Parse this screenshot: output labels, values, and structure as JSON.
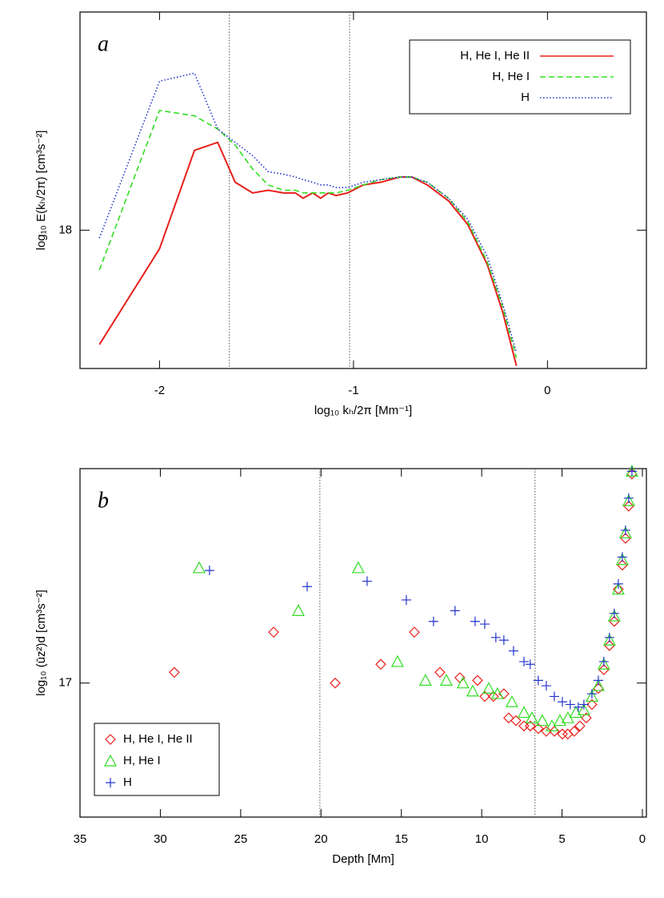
{
  "chart_data": [
    {
      "type": "line",
      "annotation": "a",
      "xlabel": "log₁₀ kₕ/2π [Mm⁻¹]",
      "ylabel": "log₁₀ E(kₕ/2π) [cm³s⁻²]",
      "xlim": [
        -2.41,
        0.51
      ],
      "ylim": [
        17.48,
        18.82
      ],
      "xticks": [
        -2,
        -1,
        0
      ],
      "yticks": [
        18
      ],
      "vlines": [
        -1.64,
        -1.02
      ],
      "legend": "top-right",
      "x": [
        -2.31,
        -2.0,
        -1.82,
        -1.7,
        -1.61,
        -1.52,
        -1.44,
        -1.36,
        -1.3,
        -1.26,
        -1.21,
        -1.17,
        -1.13,
        -1.09,
        -1.03,
        -0.95,
        -0.86,
        -0.76,
        -0.7,
        -0.62,
        -0.51,
        -0.41,
        -0.31,
        -0.23,
        -0.16
      ],
      "series": [
        {
          "name": "H, He I, He II",
          "color": "#e8201c",
          "style": "solid",
          "values": [
            17.57,
            17.93,
            18.3,
            18.33,
            18.18,
            18.14,
            18.15,
            18.14,
            18.14,
            18.12,
            18.14,
            18.12,
            18.14,
            18.13,
            18.14,
            18.17,
            18.18,
            18.2,
            18.2,
            18.17,
            18.11,
            18.02,
            17.87,
            17.69,
            17.49
          ]
        },
        {
          "name": "H, He I",
          "color": "#33dd22",
          "style": "dashed",
          "values": [
            17.85,
            18.45,
            18.43,
            18.38,
            18.32,
            18.23,
            18.17,
            18.15,
            18.15,
            18.14,
            18.14,
            18.14,
            18.14,
            18.14,
            18.15,
            18.17,
            18.19,
            18.2,
            18.2,
            18.18,
            18.12,
            18.03,
            17.88,
            17.71,
            17.52
          ]
        },
        {
          "name": "H",
          "color": "#2233cc",
          "style": "dotted",
          "values": [
            17.97,
            18.56,
            18.59,
            18.38,
            18.33,
            18.28,
            18.22,
            18.21,
            18.2,
            18.19,
            18.18,
            18.17,
            18.17,
            18.16,
            18.16,
            18.18,
            18.19,
            18.2,
            18.2,
            18.18,
            18.12,
            18.04,
            17.9,
            17.72,
            17.54
          ]
        }
      ]
    },
    {
      "type": "scatter",
      "annotation": "b",
      "xlabel": "Depth [Mm]",
      "ylabel": "log₁₀ (ūz²)d [cm³s⁻²]",
      "xlim": [
        35,
        -0.25
      ],
      "ylim": [
        16.5,
        17.8
      ],
      "xticks": [
        35,
        30,
        25,
        20,
        15,
        10,
        5,
        0
      ],
      "yticks": [
        17
      ],
      "vlines": [
        20.07,
        6.68
      ],
      "legend": "bottom-left",
      "series": [
        {
          "name": "H, He I, He II",
          "color": "#e8201c",
          "marker": "diamond",
          "x": [
            29.13,
            22.95,
            19.12,
            16.28,
            14.19,
            12.6,
            11.36,
            10.26,
            9.81,
            9.27,
            8.62,
            8.32,
            7.87,
            7.37,
            6.98,
            6.48,
            5.98,
            5.48,
            4.98,
            4.64,
            4.24,
            3.89,
            3.49,
            3.14,
            2.74,
            2.4,
            2.05,
            1.75,
            1.5,
            1.25,
            1.05,
            0.85,
            0.65
          ],
          "values": [
            17.04,
            17.19,
            17.0,
            17.07,
            17.19,
            17.04,
            17.02,
            17.01,
            16.95,
            16.95,
            16.96,
            16.87,
            16.86,
            16.84,
            16.84,
            16.83,
            16.82,
            16.82,
            16.81,
            16.81,
            16.82,
            16.84,
            16.87,
            16.92,
            16.98,
            17.05,
            17.14,
            17.23,
            17.35,
            17.44,
            17.54,
            17.66,
            17.78
          ]
        },
        {
          "name": "H, He I",
          "color": "#33dd22",
          "marker": "triangle",
          "x": [
            27.58,
            21.41,
            17.68,
            15.24,
            13.5,
            12.2,
            11.16,
            10.56,
            9.56,
            9.02,
            8.12,
            7.37,
            6.88,
            6.23,
            5.63,
            5.13,
            4.64,
            4.14,
            3.64,
            3.14,
            2.74,
            2.4,
            2.05,
            1.75,
            1.5,
            1.25,
            1.05,
            0.85,
            0.65
          ],
          "values": [
            17.43,
            17.27,
            17.43,
            17.08,
            17.01,
            17.01,
            17.0,
            16.97,
            16.98,
            16.96,
            16.93,
            16.89,
            16.87,
            16.86,
            16.84,
            16.86,
            16.87,
            16.89,
            16.9,
            16.95,
            16.99,
            17.07,
            17.16,
            17.25,
            17.35,
            17.46,
            17.56,
            17.68,
            17.79
          ]
        },
        {
          "name": "H",
          "color": "#2233cc",
          "marker": "plus",
          "x": [
            26.94,
            20.86,
            17.13,
            14.69,
            13.0,
            11.66,
            10.41,
            9.81,
            9.12,
            8.62,
            8.02,
            7.37,
            6.98,
            6.48,
            5.98,
            5.48,
            4.98,
            4.49,
            3.99,
            3.64,
            3.14,
            2.74,
            2.4,
            2.05,
            1.75,
            1.5,
            1.25,
            1.05,
            0.85,
            0.65
          ],
          "values": [
            17.42,
            17.36,
            17.38,
            17.31,
            17.23,
            17.27,
            17.23,
            17.22,
            17.17,
            17.16,
            17.12,
            17.08,
            17.07,
            17.01,
            16.99,
            16.95,
            16.93,
            16.92,
            16.91,
            16.92,
            16.96,
            17.01,
            17.08,
            17.17,
            17.26,
            17.37,
            17.47,
            17.57,
            17.69,
            17.79
          ]
        }
      ]
    }
  ]
}
